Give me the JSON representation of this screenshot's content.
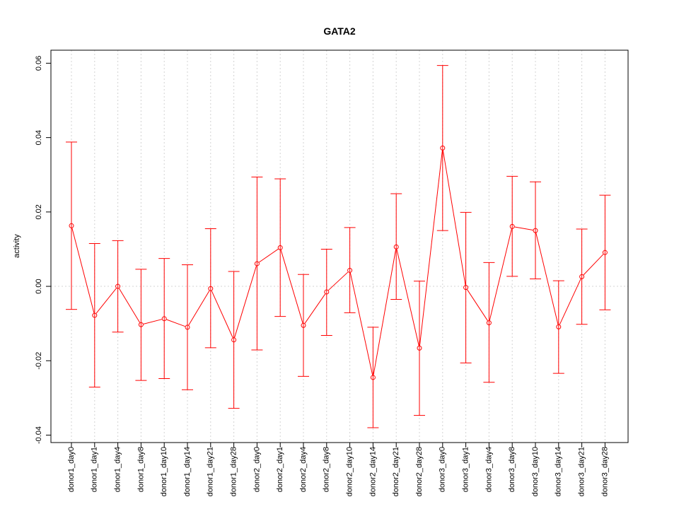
{
  "chart_data": {
    "type": "line",
    "title": "GATA2",
    "xlabel": "",
    "ylabel": "activity",
    "ylim": [
      -0.042,
      0.0635
    ],
    "yticks": [
      -0.04,
      -0.02,
      0.0,
      0.02,
      0.04,
      0.06
    ],
    "ytick_labels": [
      "-0.04",
      "-0.02",
      "0.00",
      "0.02",
      "0.04",
      "0.06"
    ],
    "grid": true,
    "color": "#ff0000",
    "categories": [
      "donor1_day0",
      "donor1_day1",
      "donor1_day4",
      "donor1_day8",
      "donor1_day10",
      "donor1_day14",
      "donor1_day21",
      "donor1_day28",
      "donor2_day0",
      "donor2_day1",
      "donor2_day4",
      "donor2_day8",
      "donor2_day10",
      "donor2_day14",
      "donor2_day21",
      "donor2_day28",
      "donor3_day0",
      "donor3_day1",
      "donor3_day4",
      "donor3_day8",
      "donor3_day10",
      "donor3_day14",
      "donor3_day21",
      "donor3_day28"
    ],
    "values": [
      0.0163,
      -0.0078,
      0.0,
      -0.0103,
      -0.0087,
      -0.011,
      -0.0006,
      -0.0144,
      0.0061,
      0.0104,
      -0.0105,
      -0.0015,
      0.0043,
      -0.0245,
      0.0106,
      -0.0166,
      0.0372,
      -0.0003,
      -0.0098,
      0.0161,
      0.015,
      -0.0109,
      0.0026,
      0.0091
    ],
    "lower": [
      -0.0062,
      -0.0271,
      -0.0123,
      -0.0253,
      -0.0248,
      -0.0278,
      -0.0165,
      -0.0328,
      -0.0171,
      -0.0081,
      -0.0242,
      -0.0132,
      -0.0071,
      -0.038,
      -0.0035,
      -0.0347,
      0.015,
      -0.0206,
      -0.0258,
      0.0027,
      0.002,
      -0.0234,
      -0.0102,
      -0.0063
    ],
    "upper": [
      0.0388,
      0.0115,
      0.0123,
      0.0046,
      0.0075,
      0.0058,
      0.0155,
      0.004,
      0.0294,
      0.0289,
      0.0032,
      0.01,
      0.0158,
      -0.011,
      0.0249,
      0.0014,
      0.0594,
      0.0199,
      0.0064,
      0.0296,
      0.0281,
      0.0015,
      0.0154,
      0.0245
    ]
  }
}
